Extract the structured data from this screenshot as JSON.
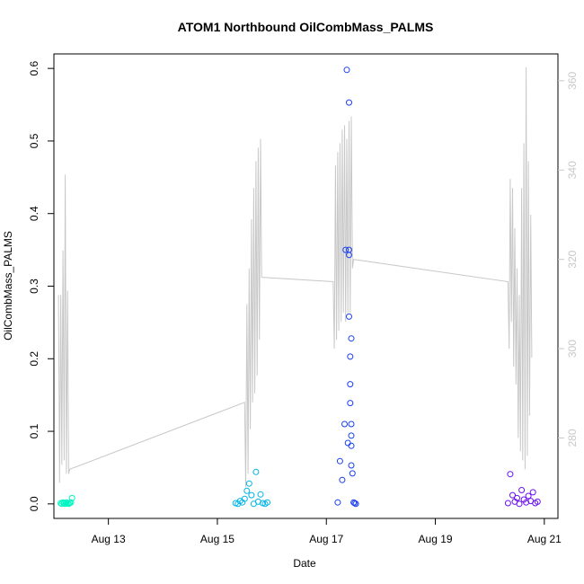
{
  "chart_data": {
    "type": "scatter",
    "title": "ATOM1 Northbound OilCombMass_PALMS",
    "xlabel": "Date",
    "ylabel": "OilCombMass_PALMS",
    "x_ticks": [
      "Aug 13",
      "Aug 15",
      "Aug 17",
      "Aug 19",
      "Aug 21"
    ],
    "y_ticks": [
      "0.0",
      "0.1",
      "0.2",
      "0.3",
      "0.4",
      "0.5",
      "0.6"
    ],
    "y2_ticks": [
      "280",
      "300",
      "320",
      "340",
      "360"
    ],
    "xlim": [
      "Aug 12 00:00",
      "Aug 21 06:00"
    ],
    "ylim": [
      -0.02,
      0.62
    ],
    "y2lim": [
      262,
      366
    ],
    "grid": false,
    "points_style": "open circles",
    "line_color": "#c8c8c8",
    "right_axis_color": "#c8c8c8",
    "series": [
      {
        "color": "#00f5c0",
        "points": [
          [
            "Aug 12 03:00",
            0.001
          ],
          [
            "Aug 12 03:30",
            0.0
          ],
          [
            "Aug 12 04:00",
            0.002
          ],
          [
            "Aug 12 04:30",
            0.001
          ],
          [
            "Aug 12 05:00",
            0.0
          ],
          [
            "Aug 12 05:30",
            0.002
          ],
          [
            "Aug 12 06:00",
            0.001
          ],
          [
            "Aug 12 06:30",
            0.0
          ],
          [
            "Aug 12 07:00",
            0.001
          ],
          [
            "Aug 12 07:30",
            0.002
          ],
          [
            "Aug 12 08:00",
            0.008
          ]
        ]
      },
      {
        "color": "#00b4e8",
        "points": [
          [
            "Aug 15 08:00",
            0.001
          ],
          [
            "Aug 15 09:00",
            0.0
          ],
          [
            "Aug 15 10:00",
            0.004
          ],
          [
            "Aug 15 11:00",
            0.002
          ],
          [
            "Aug 15 12:00",
            0.007
          ],
          [
            "Aug 15 13:00",
            0.018
          ],
          [
            "Aug 15 14:00",
            0.028
          ],
          [
            "Aug 15 15:00",
            0.012
          ],
          [
            "Aug 15 16:00",
            0.0
          ],
          [
            "Aug 15 17:00",
            0.044
          ],
          [
            "Aug 15 18:00",
            0.003
          ],
          [
            "Aug 15 19:00",
            0.013
          ],
          [
            "Aug 15 20:00",
            0.001
          ],
          [
            "Aug 15 21:00",
            0.0
          ],
          [
            "Aug 15 22:00",
            0.002
          ]
        ]
      },
      {
        "color": "#1a40f0",
        "points": [
          [
            "Aug 17 05:00",
            0.002
          ],
          [
            "Aug 17 06:00",
            0.059
          ],
          [
            "Aug 17 07:00",
            0.033
          ],
          [
            "Aug 17 08:00",
            0.11
          ],
          [
            "Aug 17 08:30",
            0.35
          ],
          [
            "Aug 17 09:00",
            0.598
          ],
          [
            "Aug 17 09:30",
            0.084
          ],
          [
            "Aug 17 10:00",
            0.553
          ],
          [
            "Aug 17 10:00",
            0.35
          ],
          [
            "Aug 17 10:00",
            0.343
          ],
          [
            "Aug 17 10:00",
            0.258
          ],
          [
            "Aug 17 10:30",
            0.203
          ],
          [
            "Aug 17 10:30",
            0.165
          ],
          [
            "Aug 17 10:30",
            0.139
          ],
          [
            "Aug 17 11:00",
            0.228
          ],
          [
            "Aug 17 11:00",
            0.11
          ],
          [
            "Aug 17 11:00",
            0.094
          ],
          [
            "Aug 17 11:00",
            0.08
          ],
          [
            "Aug 17 11:00",
            0.053
          ],
          [
            "Aug 17 11:30",
            0.042
          ],
          [
            "Aug 17 12:00",
            0.002
          ],
          [
            "Aug 17 12:30",
            0.001
          ],
          [
            "Aug 17 13:00",
            0.0
          ]
        ]
      },
      {
        "color": "#6b10f0",
        "points": [
          [
            "Aug 20 08:00",
            0.001
          ],
          [
            "Aug 20 09:00",
            0.041
          ],
          [
            "Aug 20 10:00",
            0.012
          ],
          [
            "Aug 20 11:00",
            0.003
          ],
          [
            "Aug 20 12:00",
            0.008
          ],
          [
            "Aug 20 13:00",
            0.0
          ],
          [
            "Aug 20 14:00",
            0.019
          ],
          [
            "Aug 20 15:00",
            0.006
          ],
          [
            "Aug 20 16:00",
            0.002
          ],
          [
            "Aug 20 17:00",
            0.011
          ],
          [
            "Aug 20 18:00",
            0.004
          ],
          [
            "Aug 20 19:00",
            0.016
          ],
          [
            "Aug 20 20:00",
            0.001
          ],
          [
            "Aug 20 21:00",
            0.003
          ]
        ]
      }
    ],
    "line_y2": [
      [
        "Aug 12 02:00",
        312
      ],
      [
        "Aug 12 02:30",
        270
      ],
      [
        "Aug 12 03:00",
        312
      ],
      [
        "Aug 12 03:30",
        274
      ],
      [
        "Aug 12 04:00",
        322
      ],
      [
        "Aug 12 04:30",
        275
      ],
      [
        "Aug 12 05:00",
        339
      ],
      [
        "Aug 12 05:30",
        272
      ],
      [
        "Aug 12 06:00",
        313
      ],
      [
        "Aug 12 06:30",
        272
      ],
      [
        "Aug 12 07:00",
        273
      ],
      [
        "Aug 15 12:00",
        288
      ],
      [
        "Aug 15 12:30",
        269
      ],
      [
        "Aug 15 13:00",
        310
      ],
      [
        "Aug 15 13:30",
        272
      ],
      [
        "Aug 15 14:00",
        318
      ],
      [
        "Aug 15 14:30",
        282
      ],
      [
        "Aug 15 15:00",
        329
      ],
      [
        "Aug 15 15:30",
        288
      ],
      [
        "Aug 15 16:00",
        336
      ],
      [
        "Aug 15 16:30",
        290
      ],
      [
        "Aug 15 17:00",
        342
      ],
      [
        "Aug 15 17:30",
        294
      ],
      [
        "Aug 15 18:00",
        345
      ],
      [
        "Aug 15 18:30",
        302
      ],
      [
        "Aug 15 19:00",
        347
      ],
      [
        "Aug 15 19:30",
        316
      ],
      [
        "Aug 17 03:00",
        315
      ],
      [
        "Aug 17 03:30",
        300
      ],
      [
        "Aug 17 04:00",
        341
      ],
      [
        "Aug 17 04:30",
        302
      ],
      [
        "Aug 17 05:00",
        344
      ],
      [
        "Aug 17 05:30",
        304
      ],
      [
        "Aug 17 06:00",
        346
      ],
      [
        "Aug 17 06:30",
        306
      ],
      [
        "Aug 17 07:00",
        349
      ],
      [
        "Aug 17 07:30",
        308
      ],
      [
        "Aug 17 08:00",
        350
      ],
      [
        "Aug 17 08:30",
        306
      ],
      [
        "Aug 17 09:00",
        347
      ],
      [
        "Aug 17 09:30",
        308
      ],
      [
        "Aug 17 10:00",
        351
      ],
      [
        "Aug 17 10:30",
        308
      ],
      [
        "Aug 17 11:00",
        352
      ],
      [
        "Aug 17 11:30",
        318
      ],
      [
        "Aug 17 12:00",
        320
      ],
      [
        "Aug 20 08:00",
        315
      ],
      [
        "Aug 20 08:30",
        300
      ],
      [
        "Aug 20 09:00",
        338
      ],
      [
        "Aug 20 09:30",
        306
      ],
      [
        "Aug 20 10:00",
        336
      ],
      [
        "Aug 20 10:30",
        296
      ],
      [
        "Aug 20 11:00",
        327
      ],
      [
        "Aug 20 11:30",
        292
      ],
      [
        "Aug 20 12:00",
        318
      ],
      [
        "Aug 20 12:30",
        280
      ],
      [
        "Aug 20 13:00",
        312
      ],
      [
        "Aug 20 13:30",
        277
      ],
      [
        "Aug 20 14:00",
        336
      ],
      [
        "Aug 20 14:30",
        275
      ],
      [
        "Aug 20 15:00",
        346
      ],
      [
        "Aug 20 15:30",
        273
      ],
      [
        "Aug 20 16:00",
        363
      ],
      [
        "Aug 20 16:30",
        276
      ],
      [
        "Aug 20 17:00",
        342
      ],
      [
        "Aug 20 17:30",
        285
      ],
      [
        "Aug 20 18:00",
        330
      ],
      [
        "Aug 20 18:30",
        298
      ]
    ]
  }
}
